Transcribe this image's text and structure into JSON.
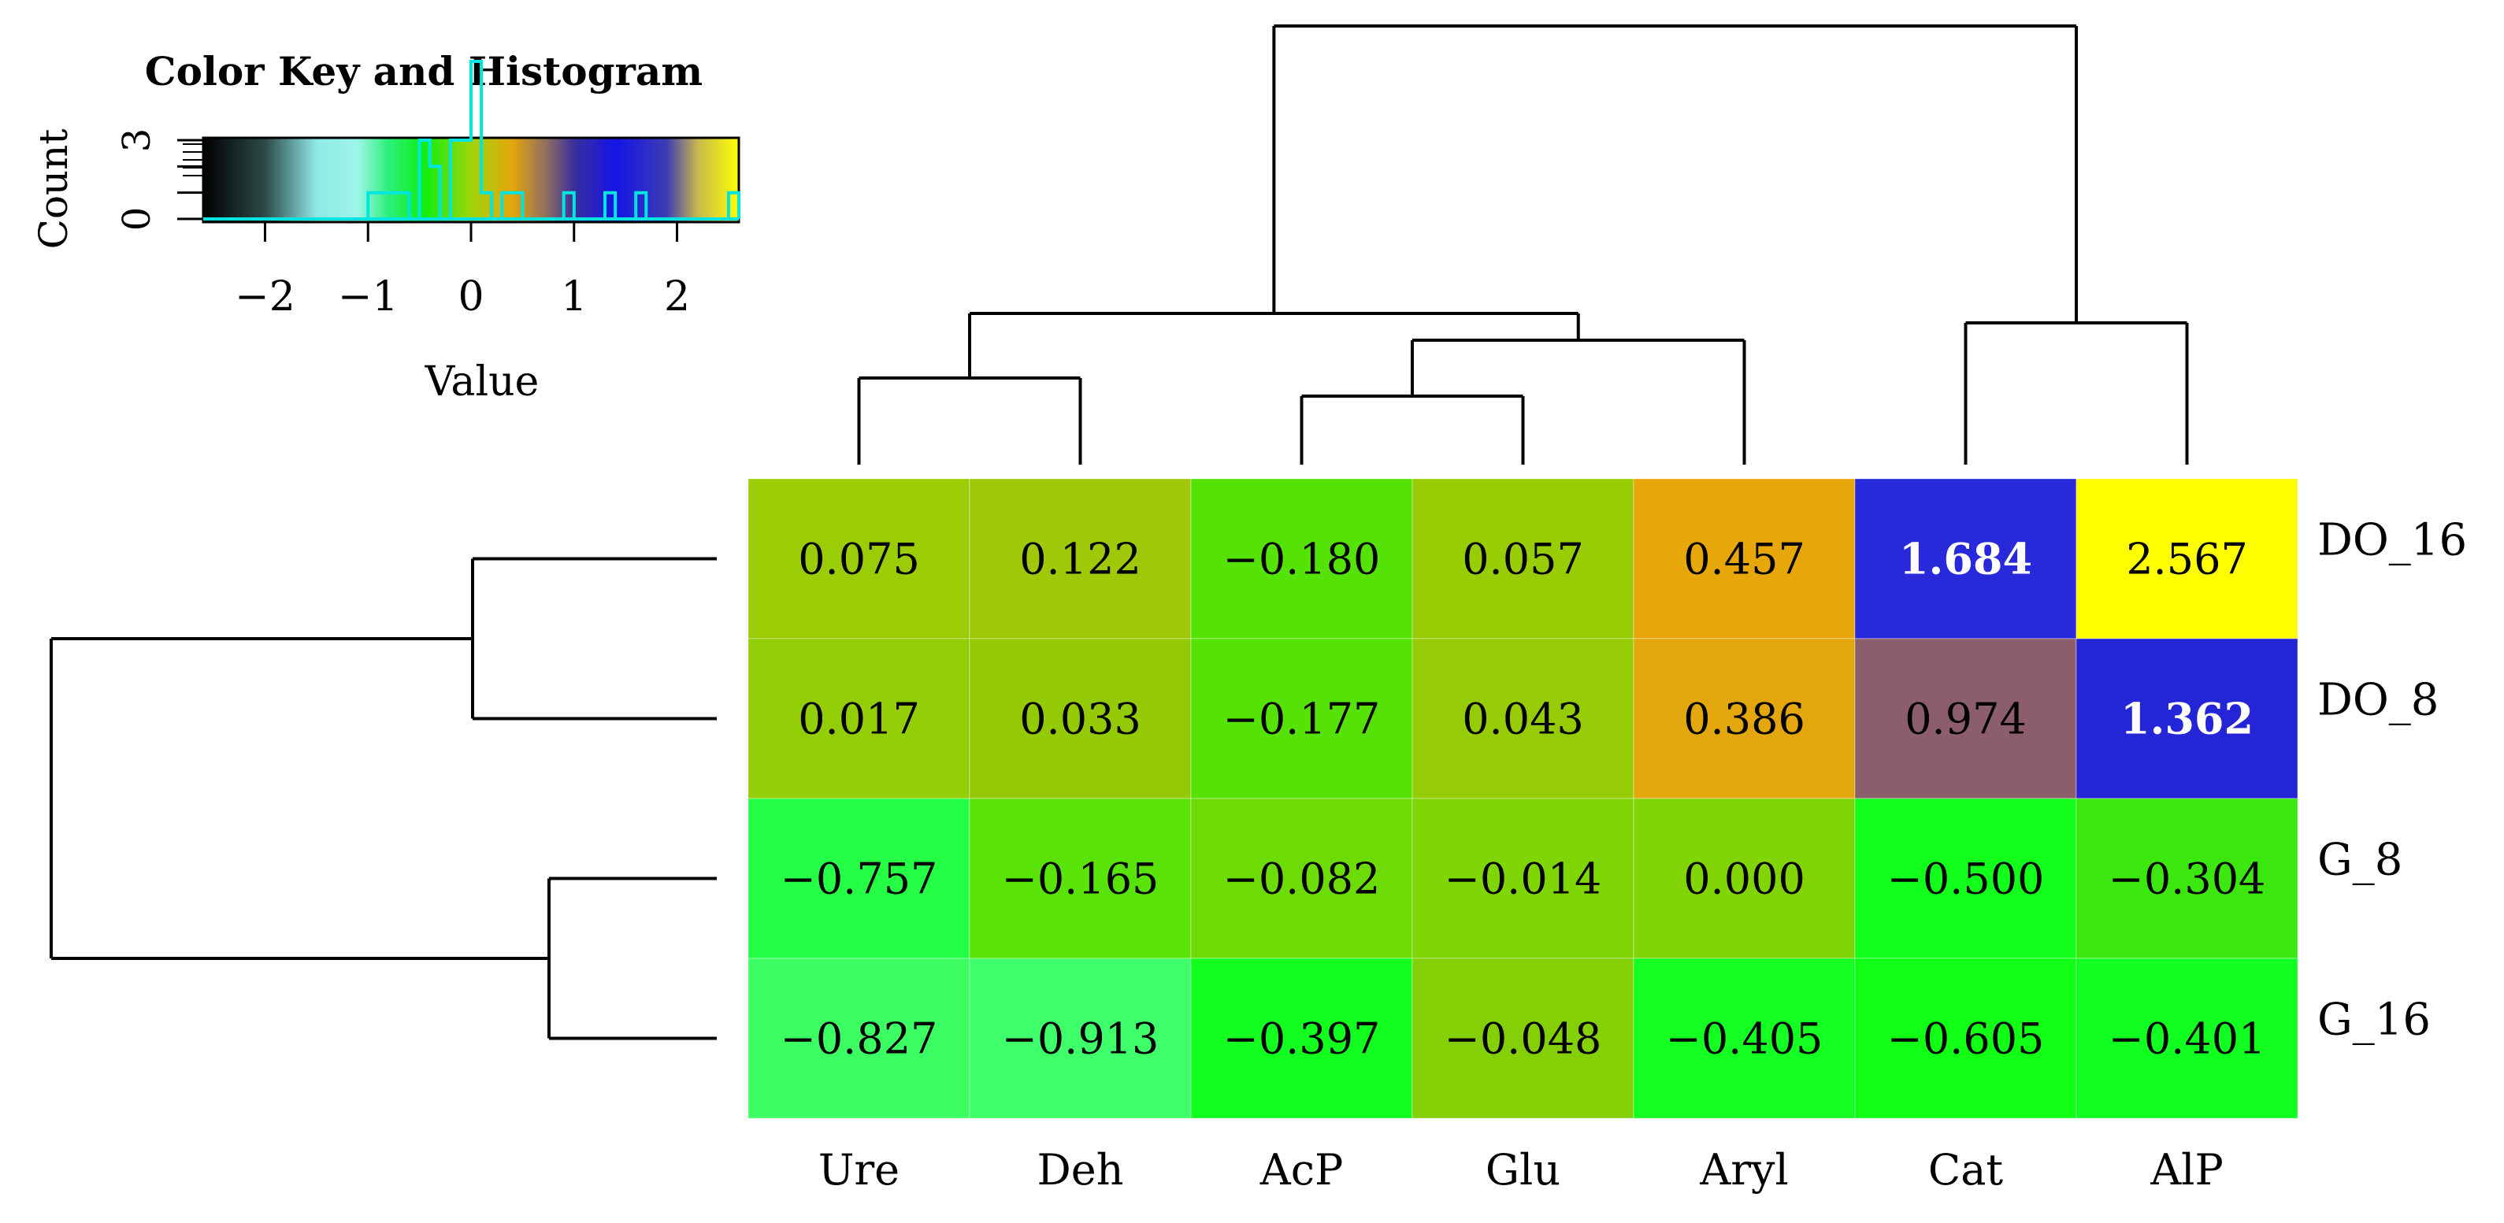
{
  "color_key": {
    "title": "Color Key and Histogram",
    "ylabel": "Count",
    "xlabel": "Value",
    "count_ticks": [
      "0",
      "3"
    ],
    "value_ticks": [
      "−2",
      "−1",
      "0",
      "1",
      "2"
    ],
    "value_tick_values": [
      -2,
      -1,
      0,
      1,
      2
    ],
    "range": [
      -2.6,
      2.6
    ],
    "gradient_stops": [
      {
        "v": -2.6,
        "color": "#000000"
      },
      {
        "v": -2.0,
        "color": "#2c4a48"
      },
      {
        "v": -1.5,
        "color": "#8fe8e6"
      },
      {
        "v": -1.1,
        "color": "#9ef5e8"
      },
      {
        "v": -0.8,
        "color": "#2af07a"
      },
      {
        "v": -0.45,
        "color": "#10ee10"
      },
      {
        "v": 0.0,
        "color": "#9ed50a"
      },
      {
        "v": 0.4,
        "color": "#e4a60c"
      },
      {
        "v": 0.75,
        "color": "#8a6a66"
      },
      {
        "v": 1.0,
        "color": "#3a2f9a"
      },
      {
        "v": 1.4,
        "color": "#1414e8"
      },
      {
        "v": 1.9,
        "color": "#3c3cb2"
      },
      {
        "v": 2.2,
        "color": "#c8b850"
      },
      {
        "v": 2.6,
        "color": "#ffff00"
      }
    ],
    "histogram_color": "#00e5e0"
  },
  "chart_data": {
    "type": "heatmap",
    "columns": [
      "Ure",
      "Deh",
      "AcP",
      "Glu",
      "Aryl",
      "Cat",
      "AlP"
    ],
    "rows": [
      "DO_16",
      "DO_8",
      "G_8",
      "G_16"
    ],
    "values": [
      [
        0.075,
        0.122,
        -0.18,
        0.057,
        0.457,
        1.684,
        2.567
      ],
      [
        0.017,
        0.033,
        -0.177,
        0.043,
        0.386,
        0.974,
        1.362
      ],
      [
        -0.757,
        -0.165,
        -0.082,
        -0.014,
        0.0,
        -0.5,
        -0.304
      ],
      [
        -0.827,
        -0.913,
        -0.397,
        -0.048,
        -0.405,
        -0.605,
        -0.401
      ]
    ],
    "labels": [
      [
        "0.075",
        "0.122",
        "−0.180",
        "0.057",
        "0.457",
        "1.684",
        "2.567"
      ],
      [
        "0.017",
        "0.033",
        "−0.177",
        "0.043",
        "0.386",
        "0.974",
        "1.362"
      ],
      [
        "−0.757",
        "−0.165",
        "−0.082",
        "−0.014",
        "0.000",
        "−0.500",
        "−0.304"
      ],
      [
        "−0.827",
        "−0.913",
        "−0.397",
        "−0.048",
        "−0.405",
        "−0.605",
        "−0.401"
      ]
    ],
    "cell_colors": [
      [
        "#9acd06",
        "#9fc808",
        "#55e307",
        "#98cc05",
        "#e8a708",
        "#2929dc",
        "#ffff00"
      ],
      [
        "#92cd05",
        "#94ca05",
        "#56e207",
        "#95cc05",
        "#e3a60c",
        "#8c5e6c",
        "#2525d8"
      ],
      [
        "#25ff45",
        "#5ae308",
        "#6ddc06",
        "#80d505",
        "#81d505",
        "#12ff1c",
        "#3ce710"
      ],
      [
        "#3cff64",
        "#3fff6a",
        "#12ff20",
        "#84cf05",
        "#14ff22",
        "#10ff14",
        "#12ff22"
      ]
    ],
    "bold_white_labels": [
      [
        false,
        false,
        false,
        false,
        false,
        true,
        false
      ],
      [
        false,
        false,
        false,
        false,
        false,
        false,
        true
      ],
      [
        false,
        false,
        false,
        false,
        false,
        false,
        false
      ],
      [
        false,
        false,
        false,
        false,
        false,
        false,
        false
      ]
    ],
    "column_dendrogram": "((Ure,Deh),((AcP,Glu),Aryl)),(Cat,AlP)",
    "row_dendrogram": "(DO_16,DO_8),(G_8,G_16)"
  }
}
